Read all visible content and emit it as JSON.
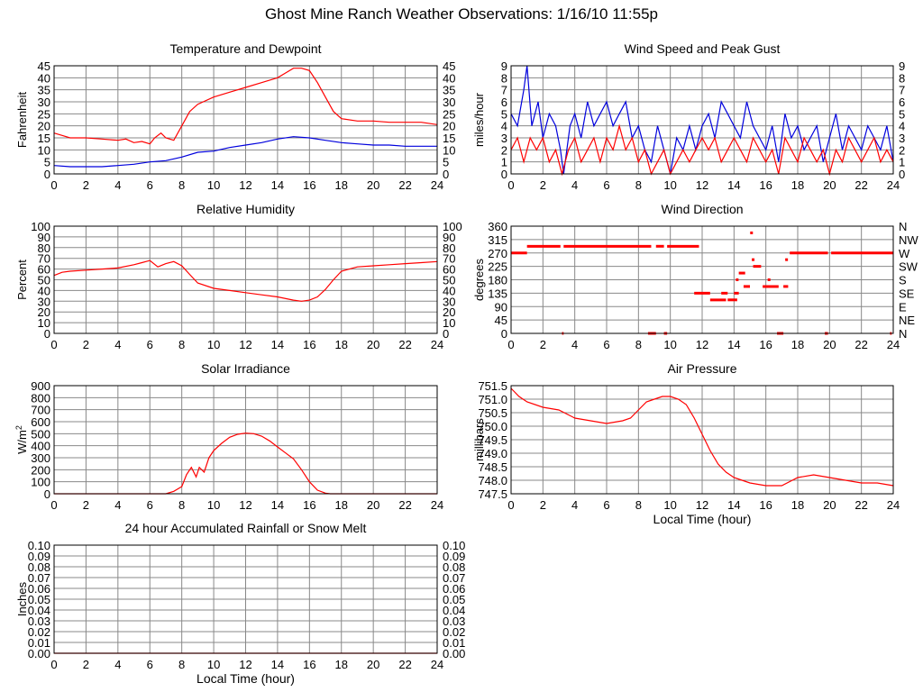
{
  "page": {
    "title": "Ghost Mine Ranch Weather Observations: 1/16/10 11:55p"
  },
  "colors": {
    "red": "#ff0000",
    "blue": "#0000dd",
    "grid": "#888888",
    "axis": "#000000"
  },
  "chart_data": [
    {
      "id": "temperature",
      "type": "line",
      "title": "Temperature and Dewpoint",
      "ylabel": "Fahrenheit",
      "xlabel": "",
      "xlim": [
        0,
        24
      ],
      "ylim": [
        0,
        45
      ],
      "xticks": [
        0,
        2,
        4,
        6,
        8,
        10,
        12,
        14,
        16,
        18,
        20,
        22,
        24
      ],
      "yticks": [
        0,
        5,
        10,
        15,
        20,
        25,
        30,
        35,
        40,
        45
      ],
      "ytick_labels": [
        "0",
        "5",
        "10",
        "15",
        "20",
        "25",
        "30",
        "35",
        "40",
        "45"
      ],
      "right_ticks": true,
      "grid": true,
      "series": [
        {
          "color": "#ff0000",
          "x": [
            0,
            0.5,
            1,
            2,
            3,
            4,
            4.5,
            5,
            5.5,
            6,
            6.3,
            6.7,
            7,
            7.5,
            8,
            8.5,
            9,
            10,
            11,
            12,
            13,
            14,
            14.5,
            15,
            15.5,
            16,
            16.5,
            17,
            17.5,
            18,
            19,
            20,
            21,
            22,
            23,
            24
          ],
          "y": [
            17,
            16,
            15,
            15,
            14.5,
            14,
            14.5,
            13,
            13.5,
            12.5,
            15,
            17,
            15,
            14,
            20,
            26,
            29,
            32,
            34,
            36,
            38,
            40,
            42,
            44,
            44,
            43,
            38,
            32,
            26,
            23,
            22,
            22,
            21.5,
            21.5,
            21.5,
            20.5
          ]
        },
        {
          "color": "#0000dd",
          "x": [
            0,
            1,
            2,
            3,
            4,
            5,
            6,
            7,
            8,
            9,
            10,
            11,
            12,
            13,
            14,
            15,
            16,
            17,
            18,
            19,
            20,
            21,
            22,
            23,
            24
          ],
          "y": [
            3.5,
            3,
            3,
            3,
            3.5,
            4,
            5,
            5.5,
            7,
            9,
            9.5,
            11,
            12,
            13,
            14.5,
            15.5,
            15,
            14,
            13,
            12.5,
            12,
            12,
            11.5,
            11.5,
            11.5
          ]
        }
      ]
    },
    {
      "id": "wind-speed",
      "type": "line",
      "title": "Wind Speed and Peak Gust",
      "ylabel": "miles/hour",
      "xlabel": "",
      "xlim": [
        0,
        24
      ],
      "ylim": [
        0,
        9
      ],
      "xticks": [
        0,
        2,
        4,
        6,
        8,
        10,
        12,
        14,
        16,
        18,
        20,
        22,
        24
      ],
      "yticks": [
        0,
        1,
        2,
        3,
        4,
        5,
        6,
        7,
        8,
        9
      ],
      "ytick_labels": [
        "0",
        "1",
        "2",
        "3",
        "4",
        "5",
        "6",
        "7",
        "8",
        "9"
      ],
      "right_ticks": true,
      "grid": true,
      "series": [
        {
          "color": "#0000dd",
          "x": [
            0,
            0.4,
            0.8,
            1,
            1.3,
            1.7,
            2,
            2.4,
            2.8,
            3.1,
            3.3,
            3.7,
            4,
            4.4,
            4.8,
            5.2,
            5.6,
            6,
            6.4,
            6.8,
            7.2,
            7.6,
            8,
            8.4,
            8.8,
            9.2,
            9.6,
            10,
            10.4,
            10.8,
            11.2,
            11.6,
            12,
            12.4,
            12.8,
            13.2,
            13.6,
            14,
            14.4,
            14.8,
            15.2,
            15.6,
            16,
            16.4,
            16.8,
            17.2,
            17.6,
            18,
            18.4,
            18.8,
            19.2,
            19.6,
            20,
            20.4,
            20.8,
            21.2,
            21.6,
            22,
            22.4,
            22.8,
            23.2,
            23.6,
            24
          ],
          "y": [
            5,
            4,
            7,
            9,
            4,
            6,
            3,
            5,
            4,
            2,
            0,
            4,
            5,
            3,
            6,
            4,
            5,
            6,
            4,
            5,
            6,
            3,
            4,
            2,
            1,
            4,
            2,
            0,
            3,
            2,
            4,
            2,
            4,
            5,
            3,
            6,
            5,
            4,
            3,
            6,
            4,
            3,
            2,
            4,
            1,
            5,
            3,
            4,
            2,
            3,
            4,
            1,
            3,
            5,
            2,
            4,
            3,
            2,
            4,
            3,
            2,
            4,
            1
          ]
        },
        {
          "color": "#ff0000",
          "x": [
            0,
            0.4,
            0.8,
            1.2,
            1.6,
            2,
            2.4,
            2.8,
            3.2,
            3.6,
            4,
            4.4,
            4.8,
            5.2,
            5.6,
            6,
            6.4,
            6.8,
            7.2,
            7.6,
            8,
            8.4,
            8.8,
            9.2,
            9.6,
            10,
            10.4,
            10.8,
            11.2,
            11.6,
            12,
            12.4,
            12.8,
            13.2,
            13.6,
            14,
            14.4,
            14.8,
            15.2,
            15.6,
            16,
            16.4,
            16.8,
            17.2,
            17.6,
            18,
            18.4,
            18.8,
            19.2,
            19.6,
            20,
            20.4,
            20.8,
            21.2,
            21.6,
            22,
            22.4,
            22.8,
            23.2,
            23.6,
            24
          ],
          "y": [
            2,
            3,
            1,
            3,
            2,
            3,
            1,
            2,
            0,
            2,
            3,
            1,
            2,
            3,
            1,
            3,
            2,
            4,
            2,
            3,
            1,
            2,
            0,
            1,
            2,
            0,
            1,
            2,
            1,
            2,
            3,
            2,
            3,
            1,
            2,
            3,
            2,
            1,
            3,
            2,
            1,
            2,
            0,
            3,
            2,
            1,
            3,
            2,
            1,
            2,
            0,
            2,
            1,
            3,
            2,
            1,
            2,
            3,
            1,
            2,
            1
          ]
        }
      ]
    },
    {
      "id": "humidity",
      "type": "line",
      "title": "Relative Humidity",
      "ylabel": "Percent",
      "xlabel": "",
      "xlim": [
        0,
        24
      ],
      "ylim": [
        0,
        100
      ],
      "xticks": [
        0,
        2,
        4,
        6,
        8,
        10,
        12,
        14,
        16,
        18,
        20,
        22,
        24
      ],
      "yticks": [
        0,
        10,
        20,
        30,
        40,
        50,
        60,
        70,
        80,
        90,
        100
      ],
      "ytick_labels": [
        "0",
        "10",
        "20",
        "30",
        "40",
        "50",
        "60",
        "70",
        "80",
        "90",
        "100"
      ],
      "right_ticks": true,
      "grid": true,
      "series": [
        {
          "color": "#ff0000",
          "x": [
            0,
            0.5,
            1,
            2,
            3,
            4,
            5,
            5.5,
            6,
            6.5,
            7,
            7.5,
            8,
            8.5,
            9,
            10,
            11,
            12,
            13,
            14,
            15,
            15.5,
            16,
            16.5,
            17,
            17.5,
            18,
            19,
            20,
            21,
            22,
            23,
            24
          ],
          "y": [
            54,
            57,
            58,
            59,
            60,
            61,
            64,
            66,
            68,
            62,
            65,
            67,
            63,
            55,
            47,
            42,
            40,
            38,
            36,
            34,
            31,
            30,
            31,
            34,
            41,
            50,
            58,
            62,
            63,
            64,
            65,
            66,
            67
          ]
        }
      ]
    },
    {
      "id": "wind-direction",
      "type": "scatter",
      "title": "Wind Direction",
      "ylabel": "degrees",
      "xlabel": "",
      "xlim": [
        0,
        24
      ],
      "ylim": [
        0,
        360
      ],
      "xticks": [
        0,
        2,
        4,
        6,
        8,
        10,
        12,
        14,
        16,
        18,
        20,
        22,
        24
      ],
      "yticks": [
        0,
        45,
        90,
        135,
        180,
        225,
        270,
        315,
        360
      ],
      "ytick_labels": [
        "0",
        "45",
        "90",
        "135",
        "180",
        "225",
        "270",
        "315",
        "360"
      ],
      "compass_labels": [
        "N",
        "NE",
        "E",
        "SE",
        "S",
        "SW",
        "W",
        "NW",
        "N"
      ],
      "right_ticks": true,
      "grid": true,
      "segments": [
        {
          "x0": 0,
          "x1": 1,
          "y": 270
        },
        {
          "x0": 1,
          "x1": 3.1,
          "y": 292.5
        },
        {
          "x0": 3.3,
          "x1": 8.8,
          "y": 292.5
        },
        {
          "x0": 9.1,
          "x1": 9.6,
          "y": 292.5
        },
        {
          "x0": 9.8,
          "x1": 11.8,
          "y": 292.5
        },
        {
          "x0": 11.5,
          "x1": 12.5,
          "y": 135
        },
        {
          "x0": 12.5,
          "x1": 13.5,
          "y": 112.5
        },
        {
          "x0": 13.2,
          "x1": 13.6,
          "y": 135
        },
        {
          "x0": 13.6,
          "x1": 14.2,
          "y": 112.5
        },
        {
          "x0": 14,
          "x1": 14.3,
          "y": 135
        },
        {
          "x0": 14.3,
          "x1": 14.7,
          "y": 202.5
        },
        {
          "x0": 14.6,
          "x1": 15,
          "y": 157.5
        },
        {
          "x0": 15.2,
          "x1": 15.7,
          "y": 225
        },
        {
          "x0": 15.8,
          "x1": 16.8,
          "y": 157.5
        },
        {
          "x0": 17.1,
          "x1": 17.4,
          "y": 157.5
        },
        {
          "x0": 17.5,
          "x1": 19.9,
          "y": 270
        },
        {
          "x0": 20.1,
          "x1": 24,
          "y": 270
        },
        {
          "x0": 8.6,
          "x1": 9.1,
          "y": 0
        },
        {
          "x0": 9.6,
          "x1": 9.8,
          "y": 0
        },
        {
          "x0": 3.2,
          "x1": 3.3,
          "y": 0
        },
        {
          "x0": 16.7,
          "x1": 17.1,
          "y": 0
        },
        {
          "x0": 19.7,
          "x1": 19.9,
          "y": 0
        },
        {
          "x0": 23.8,
          "x1": 23.9,
          "y": 0
        }
      ],
      "points": [
        {
          "x": 15.1,
          "y": 337.5
        },
        {
          "x": 15.2,
          "y": 247.5
        },
        {
          "x": 14.2,
          "y": 180
        },
        {
          "x": 16.2,
          "y": 180
        },
        {
          "x": 17.3,
          "y": 247.5
        }
      ]
    },
    {
      "id": "solar",
      "type": "line",
      "title": "Solar Irradiance",
      "ylabel": "W/m",
      "ylabel_sup": "2",
      "xlabel": "",
      "xlim": [
        0,
        24
      ],
      "ylim": [
        0,
        900
      ],
      "xticks": [
        0,
        2,
        4,
        6,
        8,
        10,
        12,
        14,
        16,
        18,
        20,
        22,
        24
      ],
      "yticks": [
        0,
        100,
        200,
        300,
        400,
        500,
        600,
        700,
        800,
        900
      ],
      "ytick_labels": [
        "0",
        "100",
        "200",
        "300",
        "400",
        "500",
        "600",
        "700",
        "800",
        "900"
      ],
      "right_ticks": false,
      "grid": true,
      "series": [
        {
          "color": "#ff0000",
          "x": [
            0,
            7,
            7.5,
            8,
            8.3,
            8.6,
            8.9,
            9.1,
            9.4,
            9.7,
            10,
            10.5,
            11,
            11.5,
            12,
            12.5,
            13,
            13.5,
            14,
            14.5,
            15,
            15.5,
            16,
            16.5,
            17,
            17.3,
            24
          ],
          "y": [
            0,
            0,
            20,
            60,
            160,
            220,
            140,
            220,
            180,
            300,
            360,
            420,
            470,
            495,
            505,
            500,
            480,
            440,
            390,
            340,
            290,
            200,
            100,
            30,
            5,
            0,
            0
          ]
        }
      ]
    },
    {
      "id": "pressure",
      "type": "line",
      "title": "Air Pressure",
      "ylabel": "millibars",
      "xlabel": "Local Time (hour)",
      "xlim": [
        0,
        24
      ],
      "ylim": [
        747.5,
        751.5
      ],
      "xticks": [
        0,
        2,
        4,
        6,
        8,
        10,
        12,
        14,
        16,
        18,
        20,
        22,
        24
      ],
      "yticks": [
        747.5,
        748.0,
        748.5,
        749.0,
        749.5,
        750.0,
        750.5,
        751.0,
        751.5
      ],
      "ytick_labels": [
        "747.5",
        "748.0",
        "748.5",
        "749.0",
        "749.5",
        "750.0",
        "750.5",
        "751.0",
        "751.5"
      ],
      "right_ticks": false,
      "grid": true,
      "series": [
        {
          "color": "#ff0000",
          "x": [
            0,
            0.5,
            1,
            2,
            3,
            4,
            5,
            6,
            7,
            7.5,
            8,
            8.5,
            9,
            9.5,
            10,
            10.5,
            11,
            11.5,
            12,
            12.5,
            13,
            13.5,
            14,
            14.5,
            15,
            16,
            17,
            18,
            19,
            20,
            21,
            22,
            23,
            24
          ],
          "y": [
            751.4,
            751.1,
            750.9,
            750.7,
            750.6,
            750.3,
            750.2,
            750.1,
            750.2,
            750.3,
            750.6,
            750.9,
            751.0,
            751.1,
            751.1,
            751.0,
            750.8,
            750.3,
            749.7,
            749.1,
            748.6,
            748.3,
            748.1,
            748.0,
            747.9,
            747.8,
            747.8,
            748.1,
            748.2,
            748.1,
            748.0,
            747.9,
            747.9,
            747.8
          ]
        }
      ]
    },
    {
      "id": "rainfall",
      "type": "line",
      "title": "24 hour Accumulated Rainfall or Snow Melt",
      "ylabel": "Inches",
      "xlabel": "Local Time (hour)",
      "xlim": [
        0,
        24
      ],
      "ylim": [
        0,
        0.1
      ],
      "xticks": [
        0,
        2,
        4,
        6,
        8,
        10,
        12,
        14,
        16,
        18,
        20,
        22,
        24
      ],
      "yticks": [
        0,
        0.01,
        0.02,
        0.03,
        0.04,
        0.05,
        0.06,
        0.07,
        0.08,
        0.09,
        0.1
      ],
      "ytick_labels": [
        "0.00",
        "0.01",
        "0.02",
        "0.03",
        "0.04",
        "0.05",
        "0.06",
        "0.07",
        "0.08",
        "0.09",
        "0.10"
      ],
      "right_ticks": true,
      "grid": true,
      "series": [
        {
          "color": "#ff0000",
          "x": [
            0,
            24
          ],
          "y": [
            0,
            0
          ]
        }
      ]
    }
  ]
}
